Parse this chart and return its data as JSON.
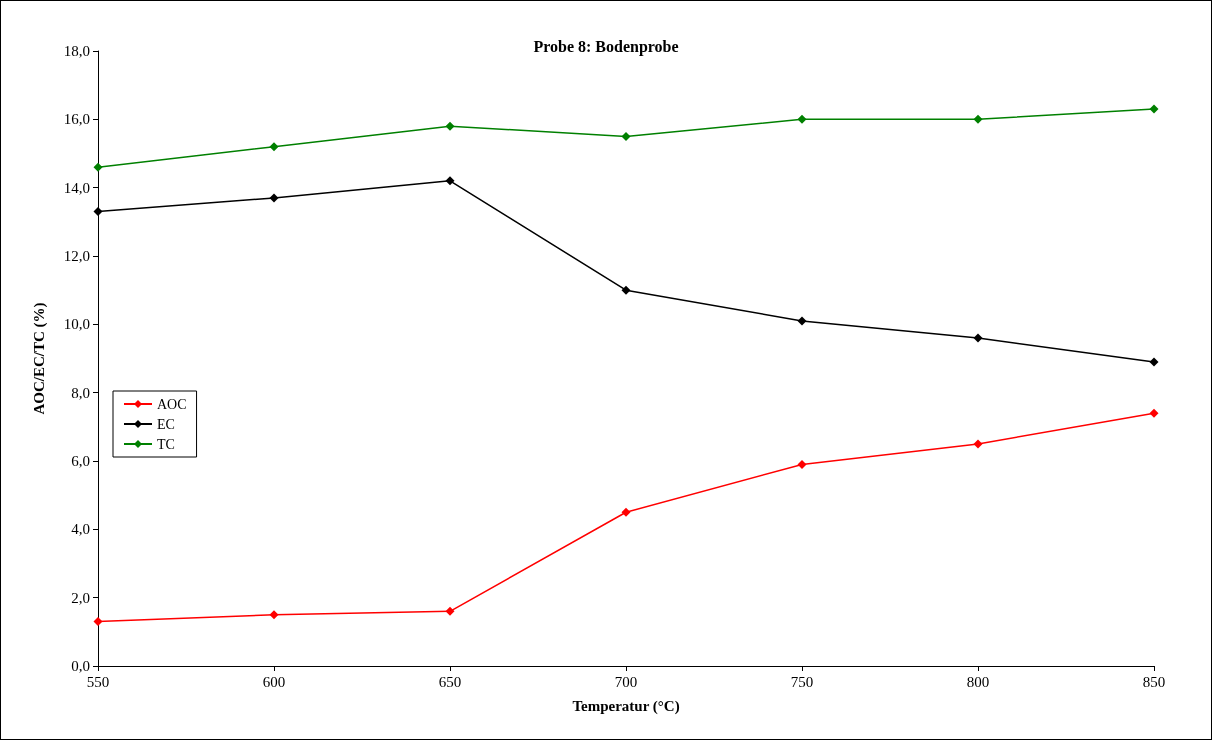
{
  "chart_data": {
    "type": "line",
    "title": "Probe 8: Bodenprobe",
    "xlabel": "Temperatur (°C)",
    "ylabel": "AOC/EC/TC (%)",
    "x": [
      550,
      600,
      650,
      700,
      750,
      800,
      850
    ],
    "series": [
      {
        "name": "AOC",
        "color": "#ff0000",
        "values": [
          1.3,
          1.5,
          1.6,
          4.5,
          5.9,
          6.5,
          7.4
        ]
      },
      {
        "name": "EC",
        "color": "#000000",
        "values": [
          13.3,
          13.7,
          14.2,
          11.0,
          10.1,
          9.6,
          8.9
        ]
      },
      {
        "name": "TC",
        "color": "#008000",
        "values": [
          14.6,
          15.2,
          15.8,
          15.5,
          16.0,
          16.0,
          16.3
        ]
      }
    ],
    "xlim": [
      550,
      850
    ],
    "xticks": [
      550,
      600,
      650,
      700,
      750,
      800,
      850
    ],
    "ylim": [
      0,
      18
    ],
    "yticks": [
      {
        "value": 0,
        "label": "0,0"
      },
      {
        "value": 2,
        "label": "2,0"
      },
      {
        "value": 4,
        "label": "4,0"
      },
      {
        "value": 6,
        "label": "6,0"
      },
      {
        "value": 8,
        "label": "8,0"
      },
      {
        "value": 10,
        "label": "10,0"
      },
      {
        "value": 12,
        "label": "12,0"
      },
      {
        "value": 14,
        "label": "14,0"
      },
      {
        "value": 16,
        "label": "16,0"
      },
      {
        "value": 18,
        "label": "18,0"
      }
    ],
    "grid": false,
    "legend": "left",
    "marker": "diamond",
    "line_style": "solid"
  }
}
